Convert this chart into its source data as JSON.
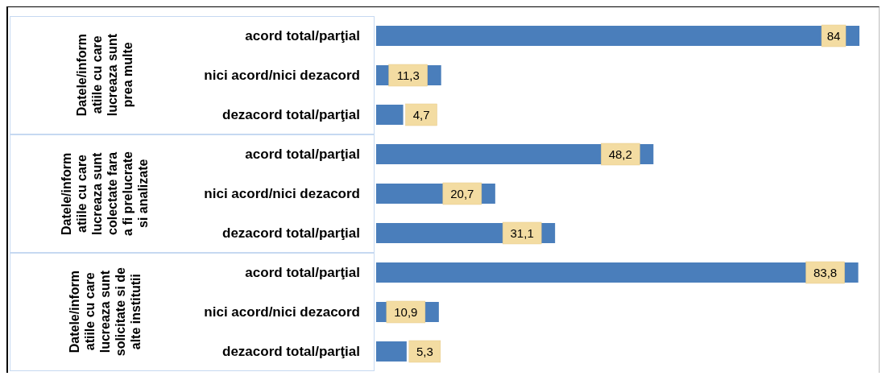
{
  "chart_data": {
    "type": "bar",
    "orientation": "horizontal",
    "categories": [
      "acord total/parţial",
      "nici acord/nici dezacord",
      "dezacord total/parţial",
      "acord total/parţial",
      "nici acord/nici dezacord",
      "dezacord total/parţial",
      "acord total/parţial",
      "nici acord/nici dezacord",
      "dezacord total/parţial"
    ],
    "values": [
      84,
      11.3,
      4.7,
      48.2,
      20.7,
      31.1,
      83.8,
      10.9,
      5.3
    ],
    "value_labels": [
      "84",
      "11,3",
      "4,7",
      "48,2",
      "20,7",
      "31,1",
      "83,8",
      "10,9",
      "5,3"
    ],
    "color": "#4a7ebb",
    "annotations": [
      "Datele/inform\natiile cu care\nlucreaza sunt\nprea multe",
      "Datele/inform\natiile cu care\nlucreaza sunt\ncolectate fara\na fi prelucrate\nsi analizate",
      "Datele/inform\natiile cu care\nlucreaza sunt\nsolicitate si de\nalte institutii"
    ],
    "grid": false,
    "legend": false
  }
}
